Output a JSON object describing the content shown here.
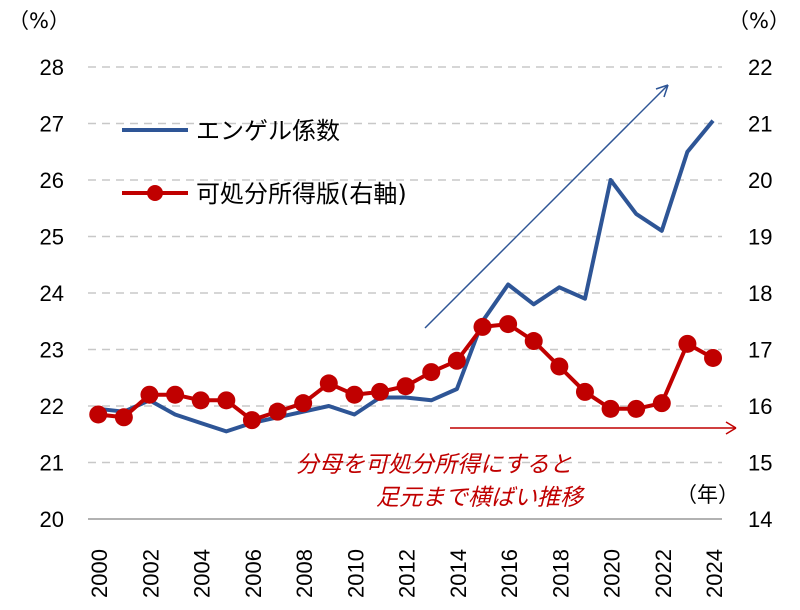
{
  "chart_data": {
    "type": "line",
    "x": [
      2000,
      2001,
      2002,
      2003,
      2004,
      2005,
      2006,
      2007,
      2008,
      2009,
      2010,
      2011,
      2012,
      2013,
      2014,
      2015,
      2016,
      2017,
      2018,
      2019,
      2020,
      2021,
      2022,
      2023,
      2024
    ],
    "x_tick_labels": [
      "2000",
      "2002",
      "2004",
      "2006",
      "2008",
      "2010",
      "2012",
      "2014",
      "2016",
      "2018",
      "2020",
      "2022",
      "2024"
    ],
    "x_unit_label": "（年）",
    "y_left": {
      "unit_label": "（%）",
      "range": [
        20,
        28
      ],
      "ticks": [
        "20",
        "21",
        "22",
        "23",
        "24",
        "25",
        "26",
        "27",
        "28"
      ]
    },
    "y_right": {
      "unit_label": "（%）",
      "range": [
        14,
        22
      ],
      "ticks": [
        "14",
        "15",
        "16",
        "17",
        "18",
        "19",
        "20",
        "21",
        "22"
      ]
    },
    "grid": true,
    "series": [
      {
        "name": "エンゲル係数",
        "axis": "left",
        "color": "#2e5596",
        "marker": "none",
        "values": [
          21.95,
          21.9,
          22.1,
          21.85,
          21.7,
          21.55,
          21.7,
          21.8,
          21.9,
          22.0,
          21.85,
          22.15,
          22.15,
          22.1,
          22.3,
          23.5,
          24.15,
          23.8,
          24.1,
          23.9,
          26.0,
          25.4,
          25.1,
          26.5,
          27.05
        ]
      },
      {
        "name": "可処分所得版(右軸)",
        "axis": "right",
        "color": "#c00000",
        "marker": "circle",
        "values": [
          15.85,
          15.8,
          16.2,
          16.2,
          16.1,
          16.1,
          15.75,
          15.9,
          16.05,
          16.4,
          16.2,
          16.25,
          16.35,
          16.6,
          16.8,
          17.4,
          17.45,
          17.15,
          16.7,
          16.25,
          15.95,
          15.95,
          16.05,
          17.1,
          16.85
        ]
      }
    ],
    "legend_position": "top-left",
    "annotations": [
      {
        "text_lines": [
          "分母を可処分所得にすると",
          "足元まで横ばい推移"
        ],
        "color": "#c00000"
      }
    ]
  }
}
